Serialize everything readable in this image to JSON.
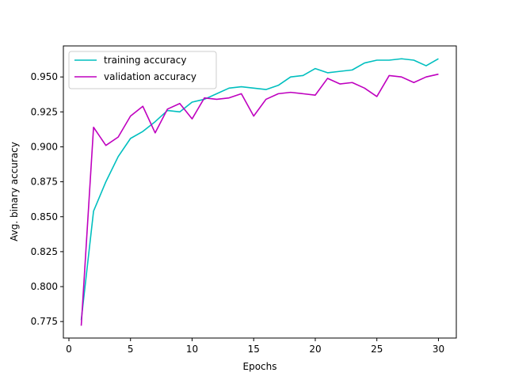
{
  "chart_data": {
    "type": "line",
    "title": "",
    "xlabel": "Epochs",
    "ylabel": "Avg. binary accuracy",
    "xlim": [
      -0.45,
      31.45
    ],
    "ylim": [
      0.7632,
      0.9722
    ],
    "xticks": [
      0,
      5,
      10,
      15,
      20,
      25,
      30
    ],
    "yticks": [
      0.775,
      0.8,
      0.825,
      0.85,
      0.875,
      0.9,
      0.925,
      0.95
    ],
    "xtick_labels": [
      "0",
      "5",
      "10",
      "15",
      "20",
      "25",
      "30"
    ],
    "ytick_labels": [
      "0.775",
      "0.800",
      "0.825",
      "0.850",
      "0.875",
      "0.900",
      "0.925",
      "0.950"
    ],
    "grid": false,
    "legend_position": "top-left",
    "x": [
      1,
      2,
      3,
      4,
      5,
      6,
      7,
      8,
      9,
      10,
      11,
      12,
      13,
      14,
      15,
      16,
      17,
      18,
      19,
      20,
      21,
      22,
      23,
      24,
      25,
      26,
      27,
      28,
      29,
      30
    ],
    "series": [
      {
        "name": "training accuracy",
        "color": "#00bfbf",
        "values": [
          0.776,
          0.854,
          0.875,
          0.893,
          0.906,
          0.911,
          0.918,
          0.926,
          0.925,
          0.932,
          0.934,
          0.938,
          0.942,
          0.943,
          0.942,
          0.941,
          0.944,
          0.95,
          0.951,
          0.956,
          0.953,
          0.954,
          0.955,
          0.96,
          0.962,
          0.962,
          0.963,
          0.962,
          0.958,
          0.963
        ]
      },
      {
        "name": "validation accuracy",
        "color": "#bf00bf",
        "values": [
          0.772,
          0.914,
          0.901,
          0.907,
          0.922,
          0.929,
          0.91,
          0.927,
          0.931,
          0.92,
          0.935,
          0.934,
          0.935,
          0.938,
          0.922,
          0.934,
          0.938,
          0.939,
          0.938,
          0.937,
          0.949,
          0.945,
          0.946,
          0.942,
          0.936,
          0.951,
          0.95,
          0.946,
          0.95,
          0.952
        ]
      }
    ]
  }
}
